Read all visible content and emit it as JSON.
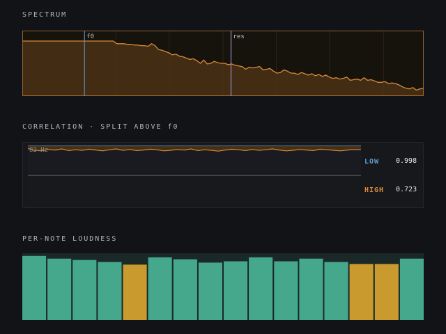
{
  "sections": {
    "spectrum_title": "SPECTRUM",
    "correlation_title": "CORRELATION · SPLIT ABOVE f0",
    "loudness_title": "PER-NOTE LOUDNESS"
  },
  "spectrum": {
    "markers": [
      {
        "label": "f0",
        "pos": 0.155,
        "color": "#5e86b0"
      },
      {
        "label": "res",
        "pos": 0.52,
        "color": "#9a8cc0"
      }
    ],
    "fill_color": "#4a3216",
    "line_color": "#d98a3a",
    "levels": [
      0.84,
      0.84,
      0.84,
      0.84,
      0.84,
      0.84,
      0.84,
      0.84,
      0.84,
      0.84,
      0.84,
      0.84,
      0.84,
      0.84,
      0.84,
      0.84,
      0.84,
      0.84,
      0.84,
      0.84,
      0.84,
      0.84,
      0.84,
      0.84,
      0.84,
      0.84,
      0.84,
      0.8,
      0.8,
      0.8,
      0.79,
      0.79,
      0.78,
      0.78,
      0.77,
      0.77,
      0.76,
      0.8,
      0.77,
      0.71,
      0.7,
      0.68,
      0.66,
      0.63,
      0.64,
      0.61,
      0.6,
      0.58,
      0.56,
      0.57,
      0.54,
      0.5,
      0.55,
      0.49,
      0.5,
      0.53,
      0.51,
      0.5,
      0.5,
      0.48,
      0.49,
      0.47,
      0.46,
      0.45,
      0.41,
      0.44,
      0.43,
      0.44,
      0.45,
      0.4,
      0.41,
      0.42,
      0.38,
      0.35,
      0.36,
      0.4,
      0.38,
      0.35,
      0.35,
      0.33,
      0.36,
      0.34,
      0.32,
      0.34,
      0.31,
      0.33,
      0.3,
      0.32,
      0.29,
      0.27,
      0.28,
      0.26,
      0.27,
      0.29,
      0.24,
      0.25,
      0.26,
      0.24,
      0.28,
      0.24,
      0.25,
      0.23,
      0.21,
      0.21,
      0.22,
      0.19,
      0.2,
      0.19,
      0.17,
      0.14,
      0.12,
      0.11,
      0.13,
      0.09,
      0.11,
      0.12
    ]
  },
  "correlation": {
    "freq_label": "82 Hz",
    "low": {
      "label": "LOW",
      "value": "0.998",
      "color": "#5e9bd0"
    },
    "high": {
      "label": "HIGH",
      "value": "0.723",
      "color": "#d98a3a"
    },
    "low_trace": [
      0.96,
      0.9,
      0.88,
      0.93,
      0.91,
      0.95,
      0.89,
      0.92,
      0.9,
      0.94,
      0.91,
      0.88,
      0.92,
      0.95,
      0.9,
      0.93,
      0.89,
      0.91,
      0.94,
      0.92,
      0.88,
      0.9,
      0.93,
      0.91,
      0.95,
      0.89,
      0.92,
      0.9,
      0.87,
      0.91,
      0.94,
      0.92,
      0.89,
      0.93,
      0.9,
      0.92,
      0.95,
      0.91,
      0.88,
      0.9,
      0.93,
      0.91,
      0.89,
      0.94,
      0.92,
      0.9,
      0.88,
      0.91,
      0.93,
      0.92
    ]
  },
  "loudness": {
    "bars": [
      {
        "level": 0.96,
        "color": "#45a88c"
      },
      {
        "level": 0.92,
        "color": "#45a88c"
      },
      {
        "level": 0.9,
        "color": "#45a88c"
      },
      {
        "level": 0.87,
        "color": "#45a88c"
      },
      {
        "level": 0.83,
        "color": "#c99a2e"
      },
      {
        "level": 0.94,
        "color": "#45a88c"
      },
      {
        "level": 0.91,
        "color": "#45a88c"
      },
      {
        "level": 0.86,
        "color": "#45a88c"
      },
      {
        "level": 0.88,
        "color": "#45a88c"
      },
      {
        "level": 0.94,
        "color": "#45a88c"
      },
      {
        "level": 0.88,
        "color": "#45a88c"
      },
      {
        "level": 0.92,
        "color": "#45a88c"
      },
      {
        "level": 0.87,
        "color": "#45a88c"
      },
      {
        "level": 0.84,
        "color": "#c99a2e"
      },
      {
        "level": 0.84,
        "color": "#c99a2e"
      },
      {
        "level": 0.92,
        "color": "#45a88c"
      }
    ]
  }
}
